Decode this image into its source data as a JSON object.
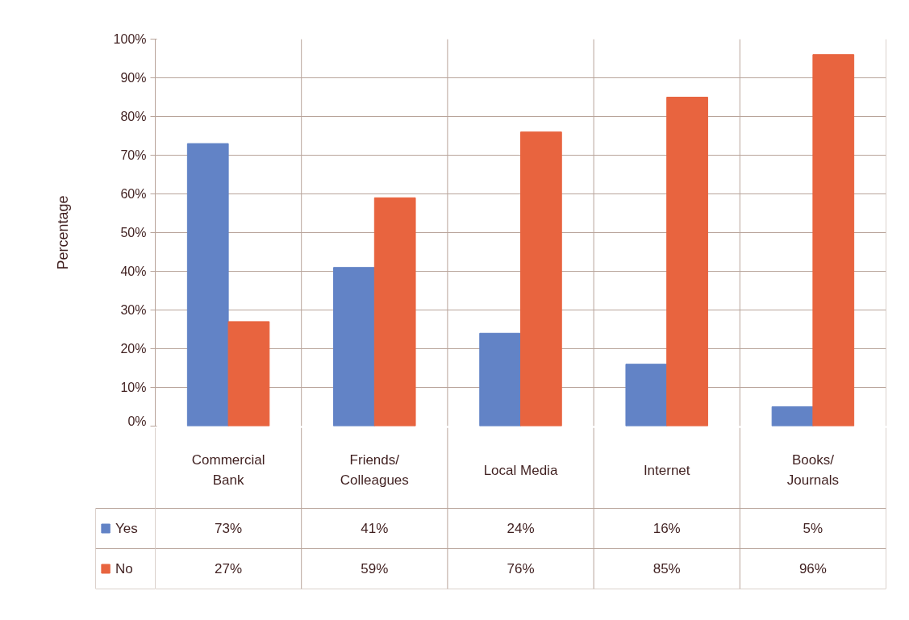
{
  "chart_data": {
    "type": "bar",
    "ylabel": "Percentage",
    "categories": [
      "Commercial Bank",
      "Friends/ Colleagues",
      "Local Media",
      "Internet",
      "Books/ Journals"
    ],
    "series": [
      {
        "name": "Yes",
        "color": "#6283c6",
        "values": [
          73,
          41,
          24,
          16,
          5
        ],
        "value_labels": [
          "73%",
          "41%",
          "24%",
          "16%",
          "5%"
        ]
      },
      {
        "name": "No",
        "color": "#e8643f",
        "values": [
          27,
          59,
          76,
          85,
          96
        ],
        "value_labels": [
          "27%",
          "59%",
          "76%",
          "85%",
          "96%"
        ]
      }
    ],
    "ylim": [
      0,
      100
    ],
    "yticks": [
      {
        "value": 0,
        "label": "0%"
      },
      {
        "value": 10,
        "label": "10%"
      },
      {
        "value": 20,
        "label": "20%"
      },
      {
        "value": 30,
        "label": "30%"
      },
      {
        "value": 40,
        "label": "40%"
      },
      {
        "value": 50,
        "label": "50%"
      },
      {
        "value": 60,
        "label": "60%"
      },
      {
        "value": 70,
        "label": "70%"
      },
      {
        "value": 80,
        "label": "80%"
      },
      {
        "value": 90,
        "label": "90%"
      },
      {
        "value": 100,
        "label": "100%"
      }
    ],
    "grid": "y",
    "legend": "bottom"
  }
}
